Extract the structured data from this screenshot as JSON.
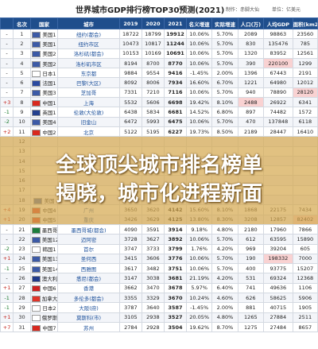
{
  "title": "世界城市GDP排行榜TOP30预测(2021)",
  "author": "制作：赤脚大仙",
  "unit": "单位：亿美元",
  "columns": [
    "名次",
    "国家",
    "城市",
    "2019",
    "2020",
    "2021",
    "名义增速",
    "实际增速",
    "人口(万)",
    "人均GDP",
    "面积(km2)"
  ],
  "overlay": {
    "line1": "全球顶尖城市排名榜单",
    "line2": "揭晓，城市化进程新面"
  },
  "rows": [
    {
      "chg": "-",
      "dir": "",
      "country": "美国1",
      "city": "纽约(都会)",
      "y2019": "18722",
      "y2020": "18799",
      "y2021": "19912",
      "nom": "10.06%",
      "real": "5.70%",
      "pop": "2089",
      "pcgdp": "98863",
      "area": "23560",
      "flag": "us"
    },
    {
      "chg": "-",
      "dir": "",
      "country": "美国1",
      "city": "纽约市区",
      "y2019": "10473",
      "y2020": "10817",
      "y2021": "11244",
      "nom": "10.06%",
      "real": "5.70%",
      "pop": "830",
      "pcgdp": "135476",
      "area": "785",
      "flag": "us"
    },
    {
      "chg": "-",
      "dir": "",
      "country": "美国2",
      "city": "洛杉矶(都会)",
      "y2019": "10153",
      "y2020": "10169",
      "y2021": "10691",
      "nom": "10.06%",
      "real": "5.70%",
      "pop": "1320",
      "pcgdp": "83952",
      "area": "12561",
      "flag": "us"
    },
    {
      "chg": "-",
      "dir": "",
      "country": "美国2",
      "city": "洛杉矶市区",
      "y2019": "8194",
      "y2020": "8700",
      "y2021": "8770",
      "nom": "10.06%",
      "real": "5.70%",
      "pop": "390",
      "pcgdp": "220100",
      "area": "1299",
      "flag": "us"
    },
    {
      "chg": "-",
      "dir": "",
      "country": "日本1",
      "city": "东京都",
      "y2019": "9884",
      "y2020": "9554",
      "y2021": "9416",
      "nom": "-1.45%",
      "real": "2.00%",
      "pop": "1396",
      "pcgdp": "67443",
      "area": "2191",
      "flag": "jp"
    },
    {
      "chg": "-",
      "dir": "",
      "country": "法国1",
      "city": "巴黎(大区)",
      "y2019": "8092",
      "y2020": "8006",
      "y2021": "7934",
      "nom": "16.60%",
      "real": "6.70%",
      "pop": "1221",
      "pcgdp": "64980",
      "area": "12012",
      "flag": "fr"
    },
    {
      "chg": "-",
      "dir": "",
      "country": "美国3",
      "city": "芝加哥",
      "y2019": "7331",
      "y2020": "7210",
      "y2021": "7116",
      "nom": "10.06%",
      "real": "5.70%",
      "pop": "940",
      "pcgdp": "78890",
      "area": "28120",
      "flag": "us"
    },
    {
      "chg": "+3",
      "dir": "up",
      "country": "中国1",
      "city": "上海",
      "y2019": "5532",
      "y2020": "5606",
      "y2021": "6698",
      "nom": "19.42%",
      "real": "8.10%",
      "pop": "2488",
      "pcgdp": "26922",
      "area": "6341",
      "flag": "cn"
    },
    {
      "chg": "-1",
      "dir": "down",
      "country": "英国1",
      "city": "伦敦(大伦敦)",
      "y2019": "6438",
      "y2020": "5834",
      "y2021": "6681",
      "nom": "14.52%",
      "real": "6.80%",
      "pop": "897",
      "pcgdp": "74482",
      "area": "1572",
      "flag": "gb"
    },
    {
      "chg": "-2",
      "dir": "down",
      "country": "美国4",
      "city": "旧金山",
      "y2019": "6472",
      "y2020": "5993",
      "y2021": "6475",
      "nom": "10.06%",
      "real": "5.70%",
      "pop": "470",
      "pcgdp": "137848",
      "area": "6118",
      "flag": "us"
    },
    {
      "chg": "+2",
      "dir": "up",
      "country": "中国2",
      "city": "北京",
      "y2019": "5122",
      "y2020": "5195",
      "y2021": "6227",
      "nom": "19.73%",
      "real": "8.50%",
      "pop": "2189",
      "pcgdp": "28447",
      "area": "16410",
      "flag": "cn"
    },
    {
      "chg": "",
      "dir": "",
      "country": "",
      "city": "",
      "y2019": "",
      "y2020": "",
      "y2021": "",
      "nom": "",
      "real": "",
      "pop": "",
      "pcgdp": "",
      "area": "",
      "flag": ""
    },
    {
      "chg": "",
      "dir": "",
      "country": "",
      "city": "",
      "y2019": "",
      "y2020": "",
      "y2021": "",
      "nom": "",
      "real": "",
      "pop": "",
      "pcgdp": "",
      "area": "",
      "flag": ""
    },
    {
      "chg": "",
      "dir": "",
      "country": "",
      "city": "",
      "y2019": "",
      "y2020": "",
      "y2021": "",
      "nom": "",
      "real": "",
      "pop": "",
      "pcgdp": "",
      "area": "",
      "flag": ""
    },
    {
      "chg": "",
      "dir": "",
      "country": "",
      "city": "",
      "y2019": "",
      "y2020": "",
      "y2021": "",
      "nom": "",
      "real": "",
      "pop": "",
      "pcgdp": "",
      "area": "",
      "flag": ""
    },
    {
      "chg": "",
      "dir": "",
      "country": "",
      "city": "",
      "y2019": "",
      "y2020": "",
      "y2021": "",
      "nom": "",
      "real": "",
      "pop": "",
      "pcgdp": "",
      "area": "",
      "flag": ""
    },
    {
      "chg": "",
      "dir": "",
      "country": "",
      "city": "",
      "y2019": "",
      "y2020": "",
      "y2021": "",
      "nom": "",
      "real": "",
      "pop": "",
      "pcgdp": "",
      "area": "",
      "flag": ""
    },
    {
      "chg": "",
      "dir": "",
      "country": "美国",
      "city": "亚特兰大",
      "y2019": "",
      "y2020": "",
      "y2021": "",
      "nom": "",
      "real": "",
      "pop": "",
      "pcgdp": "",
      "area": "",
      "flag": "us"
    },
    {
      "chg": "+4",
      "dir": "up",
      "country": "中国4",
      "city": "广州",
      "y2019": "3650",
      "y2020": "3620",
      "y2021": "4142",
      "nom": "15.60%",
      "real": "8.10%",
      "pop": "1868",
      "pcgdp": "22175",
      "area": "7434",
      "flag": "cn"
    },
    {
      "chg": "+1",
      "dir": "up",
      "country": "中国5",
      "city": "重庆",
      "y2019": "3426",
      "y2020": "3629",
      "y2021": "4125",
      "nom": "13.80%",
      "real": "8.30%",
      "pop": "3208",
      "pcgdp": "12857",
      "area": "82402",
      "flag": "cn"
    },
    {
      "chg": "-",
      "dir": "",
      "country": "墨西哥1",
      "city": "墨西哥城(都会)",
      "y2019": "4090",
      "y2020": "3591",
      "y2021": "3914",
      "nom": "9.18%",
      "real": "4.80%",
      "pop": "2180",
      "pcgdp": "17960",
      "area": "7866",
      "flag": "mx"
    },
    {
      "chg": "-",
      "dir": "",
      "country": "美国12",
      "city": "迈阿密",
      "y2019": "3728",
      "y2020": "3627",
      "y2021": "3892",
      "nom": "10.06%",
      "real": "5.70%",
      "pop": "612",
      "pcgdp": "63595",
      "area": "15890",
      "flag": "us"
    },
    {
      "chg": "-2",
      "dir": "down",
      "country": "韩国1",
      "city": "首尔",
      "y2019": "3747",
      "y2020": "3733",
      "y2021": "3799",
      "nom": "1.76%",
      "real": "4.20%",
      "pop": "969",
      "pcgdp": "39204",
      "area": "605",
      "flag": "kr"
    },
    {
      "chg": "+1",
      "dir": "up",
      "country": "美国13",
      "city": "圣何西",
      "y2019": "3415",
      "y2020": "3606",
      "y2021": "3776",
      "nom": "10.06%",
      "real": "5.70%",
      "pop": "190",
      "pcgdp": "198332",
      "area": "7000",
      "flag": "us"
    },
    {
      "chg": "-1",
      "dir": "down",
      "country": "美国14",
      "city": "西雅图",
      "y2019": "3617",
      "y2020": "3482",
      "y2021": "3751",
      "nom": "10.06%",
      "real": "5.70%",
      "pop": "400",
      "pcgdp": "93775",
      "area": "15207",
      "flag": "us"
    },
    {
      "chg": "-",
      "dir": "",
      "country": "澳大利亚1",
      "city": "悉尼(都会)",
      "y2019": "3147",
      "y2020": "3038",
      "y2021": "3681",
      "nom": "21.19%",
      "real": "4.20%",
      "pop": "531",
      "pcgdp": "69324",
      "area": "12368",
      "flag": "au"
    },
    {
      "chg": "+1",
      "dir": "up",
      "country": "中国6",
      "city": "香港",
      "y2019": "3662",
      "y2020": "3470",
      "y2021": "3678",
      "nom": "5.97%",
      "real": "6.40%",
      "pop": "741",
      "pcgdp": "49636",
      "area": "1106",
      "flag": "hk"
    },
    {
      "chg": "-1",
      "dir": "down",
      "country": "加拿大1",
      "city": "多伦多(都会)",
      "y2019": "3355",
      "y2020": "3329",
      "y2021": "3670",
      "nom": "10.24%",
      "real": "4.60%",
      "pop": "626",
      "pcgdp": "58625",
      "area": "5906",
      "flag": "ca"
    },
    {
      "chg": "-1",
      "dir": "down",
      "country": "日本2",
      "city": "大阪(府)",
      "y2019": "3787",
      "y2020": "3640",
      "y2021": "3587",
      "nom": "-1.45%",
      "real": "2.00%",
      "pop": "881",
      "pcgdp": "40715",
      "area": "1905",
      "flag": "jp"
    },
    {
      "chg": "+1",
      "dir": "up",
      "country": "俄罗斯1",
      "city": "莫斯科(市)",
      "y2019": "3105",
      "y2020": "2938",
      "y2021": "3527",
      "nom": "20.05%",
      "real": "4.80%",
      "pop": "1265",
      "pcgdp": "27884",
      "area": "2511",
      "flag": "ru"
    },
    {
      "chg": "+7",
      "dir": "up",
      "country": "中国7",
      "city": "苏州",
      "y2019": "2784",
      "y2020": "2928",
      "y2021": "3504",
      "nom": "19.62%",
      "real": "8.70%",
      "pop": "1275",
      "pcgdp": "27484",
      "area": "8657",
      "flag": "cn"
    }
  ],
  "flag_colors": {
    "us": "#3c5aa6",
    "jp": "#ffffff",
    "fr": "#2b4aa0",
    "cn": "#d8281e",
    "gb": "#23408e",
    "mx": "#1c7d3d",
    "kr": "#ffffff",
    "au": "#1f3a8a",
    "hk": "#cc2121",
    "ca": "#e0342a",
    "ru": "#ffffff"
  }
}
